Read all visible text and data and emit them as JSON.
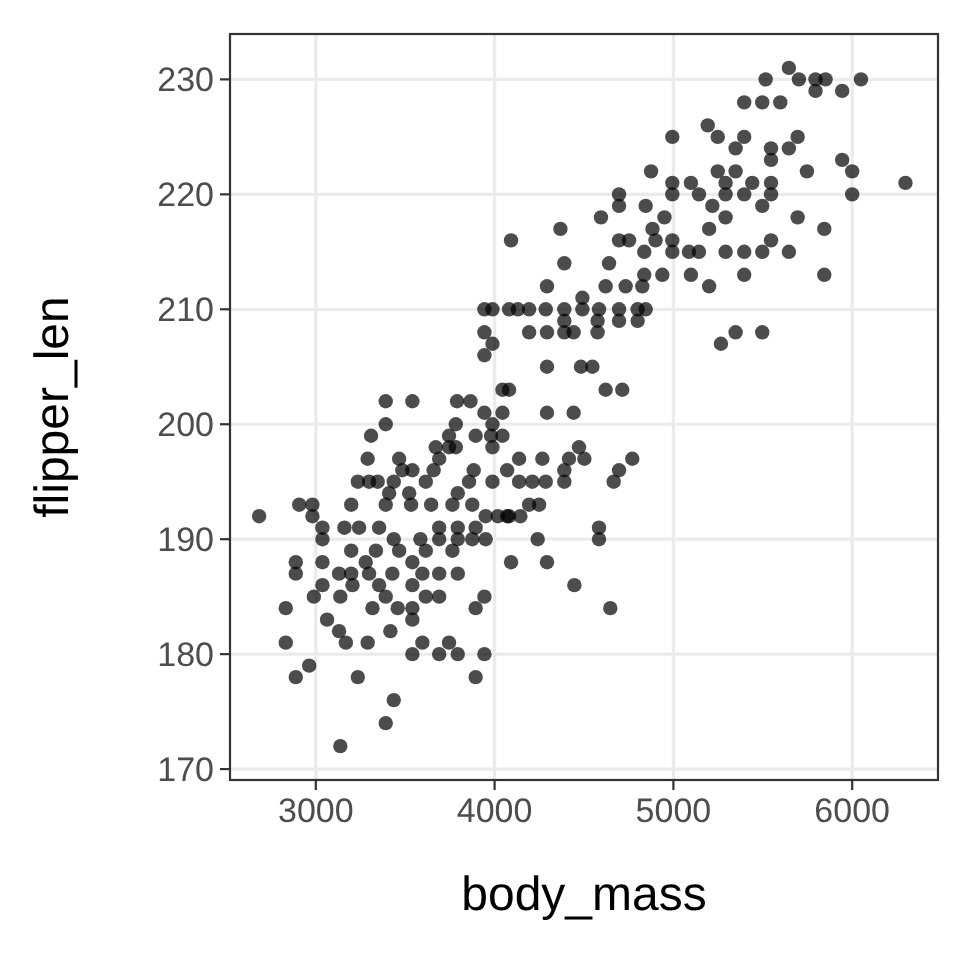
{
  "chart_data": {
    "type": "scatter",
    "xlabel": "body_mass",
    "ylabel": "flipper_len",
    "xlim": [
      2520,
      6480
    ],
    "ylim": [
      169.05,
      233.95
    ],
    "xticks": [
      3000,
      4000,
      5000,
      6000
    ],
    "yticks": [
      170,
      180,
      190,
      200,
      210,
      220,
      230
    ],
    "grid": true,
    "marker": "circle",
    "series": [
      {
        "color": "#000000",
        "x": [
          5646,
          5516,
          5702,
          5795,
          5851,
          6049,
          5795,
          5944,
          5396,
          5497,
          5598,
          5192,
          4994,
          5248,
          5396,
          5695,
          5348,
          5546,
          5646,
          5546,
          5944,
          4875,
          5248,
          5348,
          5747,
          6000,
          4994,
          5098,
          5292,
          5441,
          5546,
          6298,
          4696,
          4994,
          5143,
          5292,
          5396,
          5546,
          6000,
          4696,
          4845,
          5218,
          5497,
          4595,
          4950,
          5292,
          5695,
          4368,
          4883,
          5200,
          5844,
          4092,
          4696,
          4752,
          4900,
          4994,
          5546,
          4994,
          5087,
          5143,
          5292,
          5396,
          5497,
          5646,
          4837,
          4390,
          4640,
          4837,
          4938,
          5098,
          5396,
          5844,
          4293,
          4491,
          4621,
          4733,
          4826,
          5200,
          3943,
          3988,
          4081,
          4130,
          4193,
          4286,
          4390,
          4491,
          4584,
          4696,
          4800,
          4845,
          4390,
          4576,
          4696,
          4800,
          3943,
          4193,
          4293,
          4390,
          4442,
          4576,
          5348,
          5497,
          3988,
          5266,
          3943,
          4293,
          4483,
          4547,
          4044,
          4081,
          4621,
          4714,
          3391,
          3540,
          3790,
          3865,
          3943,
          4044,
          4293,
          4442,
          3391,
          3783,
          3988,
          3309,
          3745,
          3894,
          3980,
          4044,
          3671,
          3745,
          3783,
          3988,
          4472,
          3290,
          3466,
          3690,
          4137,
          4267,
          4416,
          4502,
          4770,
          3484,
          3540,
          3659,
          3883,
          4070,
          4390,
          4696,
          3235,
          3298,
          3346,
          3436,
          3615,
          3857,
          3988,
          4137,
          4211,
          4286,
          4390,
          4666,
          3410,
          3522,
          3794,
          2907,
          2981,
          3198,
          3391,
          3533,
          3645,
          3764,
          3875,
          4193,
          4249,
          2683,
          3950,
          4070,
          2981,
          4018,
          4081,
          4144,
          3037,
          3160,
          3242,
          3354,
          3690,
          3794,
          3894,
          4584,
          3037,
          3436,
          3585,
          3690,
          3794,
          3875,
          3950,
          4241,
          4584,
          3198,
          3336,
          3466,
          3615,
          3764,
          2888,
          3037,
          3279,
          3540,
          4092,
          4293,
          2888,
          3130,
          3198,
          3298,
          3428,
          3596,
          3690,
          3794,
          3037,
          3205,
          3354,
          3540,
          4446,
          2989,
          3137,
          3391,
          3615,
          3690,
          3943,
          2832,
          3317,
          3458,
          3540,
          3894,
          4647,
          3063,
          3540,
          3130,
          3417,
          2832,
          3168,
          3290,
          3596,
          3745,
          3540,
          3690,
          3794,
          3943,
          2963,
          2888,
          3235,
          3894,
          3436,
          3391,
          3137
        ],
        "values": [
          231,
          230,
          230,
          230,
          230,
          230,
          229,
          229,
          228,
          228,
          228,
          226,
          225,
          225,
          225,
          225,
          224,
          224,
          224,
          223,
          223,
          222,
          222,
          222,
          222,
          222,
          221,
          221,
          221,
          221,
          221,
          221,
          220,
          220,
          220,
          220,
          220,
          220,
          220,
          219,
          219,
          219,
          219,
          218,
          218,
          218,
          218,
          217,
          217,
          217,
          217,
          216,
          216,
          216,
          216,
          216,
          216,
          215,
          215,
          215,
          215,
          215,
          215,
          215,
          215,
          214,
          214,
          213,
          213,
          213,
          213,
          213,
          212,
          211,
          212,
          212,
          212,
          212,
          210,
          210,
          210,
          210,
          210,
          210,
          210,
          210,
          210,
          210,
          210,
          210,
          209,
          209,
          209,
          209,
          208,
          208,
          208,
          208,
          208,
          208,
          208,
          208,
          207,
          207,
          206,
          205,
          205,
          205,
          203,
          203,
          203,
          203,
          202,
          202,
          202,
          202,
          201,
          201,
          201,
          201,
          200,
          200,
          200,
          199,
          199,
          199,
          199,
          199,
          198,
          198,
          198,
          198,
          198,
          197,
          197,
          197,
          197,
          197,
          197,
          197,
          197,
          196,
          196,
          196,
          196,
          196,
          196,
          196,
          195,
          195,
          195,
          195,
          195,
          195,
          195,
          195,
          195,
          195,
          195,
          195,
          194,
          194,
          194,
          193,
          193,
          193,
          193,
          193,
          193,
          193,
          193,
          193,
          193,
          192,
          192,
          192,
          192,
          192,
          192,
          192,
          191,
          191,
          191,
          191,
          191,
          191,
          191,
          191,
          190,
          190,
          190,
          190,
          190,
          190,
          190,
          190,
          190,
          189,
          189,
          189,
          189,
          189,
          188,
          188,
          188,
          188,
          188,
          188,
          187,
          187,
          187,
          187,
          187,
          187,
          187,
          187,
          186,
          186,
          186,
          186,
          186,
          185,
          185,
          185,
          185,
          185,
          185,
          184,
          184,
          184,
          184,
          184,
          184,
          183,
          183,
          182,
          182,
          181,
          181,
          181,
          181,
          181,
          180,
          180,
          180,
          180,
          179,
          178,
          178,
          178,
          176,
          174,
          172
        ]
      }
    ]
  }
}
